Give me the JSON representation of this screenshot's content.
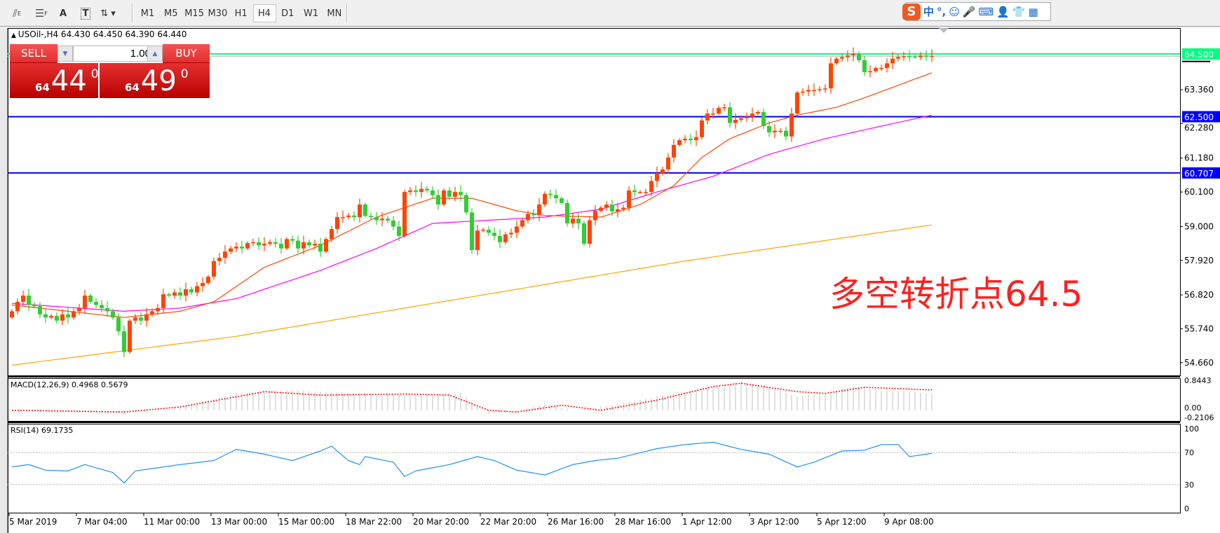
{
  "toolbar": {
    "tools": [
      {
        "icon": "fibonacci-expansion-icon",
        "label": "E"
      },
      {
        "icon": "fibonacci-lines-icon",
        "label": "F"
      },
      {
        "icon": "text-icon",
        "label": "A"
      },
      {
        "icon": "text-label-icon",
        "label": "T"
      },
      {
        "icon": "arrows-icon",
        "label": "▾"
      }
    ],
    "timeframes": [
      "M1",
      "M5",
      "M15",
      "M30",
      "H1",
      "H4",
      "D1",
      "W1",
      "MN"
    ],
    "active_timeframe": "H4"
  },
  "ime": {
    "logo": "S",
    "items": [
      "中",
      "°,",
      "☺",
      "🎤",
      "⌨",
      "👤",
      "👕",
      "▦"
    ]
  },
  "chart": {
    "info": "USOil-,H4  64.430 64.450 64.390 64.440",
    "trade": {
      "sell": "SELL",
      "buy": "BUY",
      "lot": "1.00",
      "sell_big": "44",
      "sell_small": "64",
      "sell_sup": "0",
      "buy_big": "49",
      "buy_small": "64",
      "buy_sup": "0"
    },
    "annotation": "多空转折点64.5"
  },
  "chart_data": {
    "type": "candlestick",
    "symbol": "USOil-",
    "timeframe": "H4",
    "colors": {
      "up": "#ff4500",
      "down": "#32cd32",
      "ma_fast": "#ff4500",
      "ma_mid": "#ff00ff",
      "ma_slow": "#ffa500",
      "level_green": "#00ff7f",
      "level_blue": "#0000ff",
      "rsi": "#1e90ff",
      "macd_hist": "#c0c0c0",
      "macd_signal": "#ff0000"
    },
    "price_ticks": [
      "63.360",
      "62.280",
      "61.180",
      "60.100",
      "59.000",
      "57.920",
      "56.820",
      "55.740",
      "54.660"
    ],
    "price_tick_values": [
      63.36,
      62.28,
      61.18,
      60.1,
      59.0,
      57.92,
      56.82,
      55.74,
      54.66
    ],
    "ylim": [
      54.4,
      65.4
    ],
    "levels": [
      {
        "value": 64.5,
        "label": "64.500",
        "color": "#00ff7f"
      },
      {
        "value": 62.5,
        "label": "62.500",
        "color": "#0000ff"
      },
      {
        "value": 60.707,
        "label": "60.707",
        "color": "#0000ff"
      }
    ],
    "bid": 64.44,
    "closes": [
      56.3,
      56.6,
      56.8,
      56.5,
      56.46,
      56.2,
      56.1,
      56.15,
      56.0,
      56.2,
      56.1,
      56.3,
      56.4,
      56.8,
      56.6,
      56.5,
      56.4,
      56.3,
      56.1,
      55.66,
      55.0,
      56.0,
      56.1,
      56.0,
      56.2,
      56.3,
      56.4,
      56.84,
      56.8,
      56.9,
      56.8,
      57.0,
      56.9,
      57.1,
      57.2,
      57.4,
      57.9,
      58.0,
      58.2,
      58.3,
      58.36,
      58.3,
      58.47,
      58.5,
      58.4,
      58.45,
      58.5,
      58.45,
      58.3,
      58.6,
      58.55,
      58.3,
      58.5,
      58.4,
      58.45,
      58.2,
      58.6,
      58.92,
      59.3,
      59.3,
      59.35,
      59.3,
      59.7,
      59.34,
      59.3,
      59.2,
      59.25,
      59.19,
      59.0,
      58.7,
      60.1,
      60.15,
      60.1,
      60.2,
      60.15,
      60.0,
      59.7,
      60.15,
      59.95,
      60.1,
      60.0,
      59.45,
      58.25,
      58.87,
      58.9,
      58.8,
      58.7,
      58.5,
      58.75,
      58.8,
      59.0,
      59.2,
      59.4,
      59.36,
      59.7,
      60.04,
      60.0,
      59.9,
      59.75,
      59.1,
      59.25,
      59.1,
      58.45,
      59.2,
      59.5,
      59.6,
      59.7,
      59.48,
      59.55,
      59.6,
      60.15,
      60.1,
      60.1,
      60.1,
      60.45,
      60.7,
      60.82,
      61.2,
      61.6,
      61.75,
      61.8,
      61.75,
      61.85,
      62.38,
      62.6,
      62.6,
      62.78,
      62.8,
      62.3,
      62.4,
      62.45,
      62.5,
      62.6,
      62.65,
      62.2,
      62.0,
      62.05,
      62.05,
      61.87,
      62.6,
      63.27,
      63.3,
      63.35,
      63.35,
      63.38,
      63.4,
      64.2,
      64.35,
      64.4,
      64.45,
      64.5,
      64.3,
      63.92,
      63.95,
      64.05,
      64.05,
      64.2,
      64.35,
      64.4,
      64.43,
      64.42,
      64.4,
      64.45,
      64.43,
      64.44
    ],
    "first_open": 56.1,
    "ma_fast": [
      [
        0,
        56.5
      ],
      [
        20,
        56.1
      ],
      [
        30,
        56.3
      ],
      [
        36,
        56.6
      ],
      [
        45,
        57.7
      ],
      [
        55,
        58.4
      ],
      [
        65,
        59.3
      ],
      [
        75,
        59.9
      ],
      [
        82,
        59.9
      ],
      [
        90,
        59.5
      ],
      [
        95,
        59.35
      ],
      [
        105,
        59.3
      ],
      [
        112,
        59.7
      ],
      [
        118,
        60.3
      ],
      [
        123,
        61.2
      ],
      [
        128,
        61.8
      ],
      [
        135,
        62.3
      ],
      [
        140,
        62.55
      ],
      [
        147,
        62.8
      ],
      [
        152,
        63.1
      ],
      [
        158,
        63.5
      ],
      [
        164,
        63.9
      ]
    ],
    "ma_mid": [
      [
        0,
        56.55
      ],
      [
        20,
        56.3
      ],
      [
        30,
        56.4
      ],
      [
        40,
        56.7
      ],
      [
        55,
        57.6
      ],
      [
        65,
        58.3
      ],
      [
        75,
        59.1
      ],
      [
        85,
        59.2
      ],
      [
        95,
        59.3
      ],
      [
        105,
        59.55
      ],
      [
        115,
        60.1
      ],
      [
        125,
        60.6
      ],
      [
        135,
        61.3
      ],
      [
        145,
        61.8
      ],
      [
        155,
        62.2
      ],
      [
        164,
        62.55
      ]
    ],
    "ma_slow": [
      [
        0,
        54.58
      ],
      [
        40,
        55.5
      ],
      [
        80,
        56.7
      ],
      [
        120,
        57.9
      ],
      [
        164,
        59.05
      ]
    ],
    "macd": {
      "label": "MACD(12,26,9) 0.4968 0.5679",
      "ticks": [
        "0.8443",
        "0.00",
        "-0.2106"
      ],
      "range": [
        -0.2106,
        0.8443
      ],
      "hist": [
        [
          0,
          0.0
        ],
        [
          20,
          -0.1
        ],
        [
          30,
          0.1
        ],
        [
          40,
          0.5
        ],
        [
          50,
          0.6
        ],
        [
          60,
          0.5
        ],
        [
          70,
          0.45
        ],
        [
          80,
          0.5
        ],
        [
          85,
          -0.1
        ],
        [
          90,
          -0.05
        ],
        [
          95,
          0.2
        ],
        [
          100,
          0.0
        ],
        [
          105,
          0.1
        ],
        [
          115,
          0.4
        ],
        [
          125,
          0.7
        ],
        [
          130,
          0.84
        ],
        [
          135,
          0.7
        ],
        [
          140,
          0.4
        ],
        [
          145,
          0.5
        ],
        [
          150,
          0.7
        ],
        [
          155,
          0.6
        ],
        [
          164,
          0.5
        ]
      ],
      "signal": [
        [
          0,
          0.0
        ],
        [
          20,
          -0.05
        ],
        [
          30,
          0.1
        ],
        [
          45,
          0.55
        ],
        [
          55,
          0.45
        ],
        [
          70,
          0.48
        ],
        [
          78,
          0.45
        ],
        [
          85,
          0.0
        ],
        [
          90,
          -0.05
        ],
        [
          98,
          0.15
        ],
        [
          105,
          0.0
        ],
        [
          115,
          0.3
        ],
        [
          125,
          0.7
        ],
        [
          130,
          0.8
        ],
        [
          140,
          0.55
        ],
        [
          145,
          0.5
        ],
        [
          152,
          0.68
        ],
        [
          164,
          0.6
        ]
      ]
    },
    "rsi": {
      "label": "RSI(14) 69.1735",
      "ticks": [
        "100",
        "70",
        "30",
        "0"
      ],
      "levels": [
        70,
        30
      ],
      "values": [
        [
          0,
          52
        ],
        [
          3,
          55
        ],
        [
          6,
          48
        ],
        [
          10,
          47
        ],
        [
          13,
          55
        ],
        [
          18,
          45
        ],
        [
          20,
          32
        ],
        [
          22,
          47
        ],
        [
          30,
          55
        ],
        [
          36,
          60
        ],
        [
          40,
          74
        ],
        [
          45,
          68
        ],
        [
          50,
          60
        ],
        [
          55,
          72
        ],
        [
          57,
          78
        ],
        [
          60,
          60
        ],
        [
          62,
          55
        ],
        [
          63,
          65
        ],
        [
          68,
          58
        ],
        [
          70,
          40
        ],
        [
          72,
          47
        ],
        [
          78,
          55
        ],
        [
          83,
          65
        ],
        [
          86,
          60
        ],
        [
          90,
          48
        ],
        [
          95,
          42
        ],
        [
          100,
          55
        ],
        [
          104,
          60
        ],
        [
          108,
          63
        ],
        [
          115,
          75
        ],
        [
          120,
          80
        ],
        [
          125,
          83
        ],
        [
          130,
          74
        ],
        [
          135,
          68
        ],
        [
          140,
          52
        ],
        [
          143,
          58
        ],
        [
          148,
          72
        ],
        [
          152,
          73
        ],
        [
          155,
          80
        ],
        [
          158,
          80
        ],
        [
          160,
          65
        ],
        [
          162,
          67
        ],
        [
          164,
          69
        ]
      ]
    },
    "time_labels": [
      "5 Mar 2019",
      "7 Mar 04:00",
      "11 Mar 00:00",
      "13 Mar 00:00",
      "15 Mar 00:00",
      "18 Mar 22:00",
      "20 Mar 20:00",
      "22 Mar 20:00",
      "26 Mar 16:00",
      "28 Mar 16:00",
      "1 Apr 12:00",
      "3 Apr 12:00",
      "5 Apr 12:00",
      "9 Apr 08:00"
    ],
    "time_label_every": 12
  }
}
